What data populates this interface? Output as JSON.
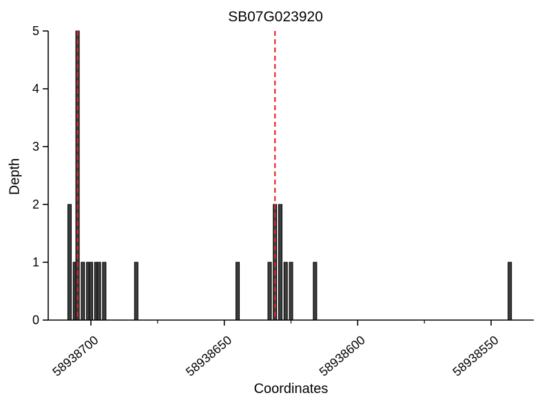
{
  "chart_data": {
    "type": "bar",
    "title": "SB07G023920",
    "xlabel": "Coordinates",
    "ylabel": "Depth",
    "x_axis_reversed": true,
    "xlim": [
      58938716,
      58938534
    ],
    "ylim": [
      0,
      5
    ],
    "yticks": [
      0,
      1,
      2,
      3,
      4,
      5
    ],
    "xticks": [
      58938700,
      58938650,
      58938600,
      58938550
    ],
    "xticks_minor": [
      58938675,
      58938625,
      58938575
    ],
    "bar_width_units": 1.3,
    "bars": [
      [
        58938708,
        2
      ],
      [
        58938706,
        1
      ],
      [
        58938705,
        5
      ],
      [
        58938703,
        1
      ],
      [
        58938701,
        1
      ],
      [
        58938700,
        1
      ],
      [
        58938698,
        1
      ],
      [
        58938697,
        1
      ],
      [
        58938695,
        1
      ],
      [
        58938683,
        1
      ],
      [
        58938645,
        1
      ],
      [
        58938633,
        1
      ],
      [
        58938631,
        2
      ],
      [
        58938629,
        2
      ],
      [
        58938627,
        1
      ],
      [
        58938625,
        1
      ],
      [
        58938616,
        1
      ],
      [
        58938543,
        1
      ]
    ],
    "gene_marker_lines": [
      58938705,
      58938631
    ],
    "legend": "none",
    "grid": false,
    "colors": {
      "bar_fill": "#3d3d3d",
      "bar_edge": "#000000",
      "marker_line": "#e8231e",
      "axis": "#000000",
      "background": "#ffffff",
      "text": "#000000"
    }
  }
}
